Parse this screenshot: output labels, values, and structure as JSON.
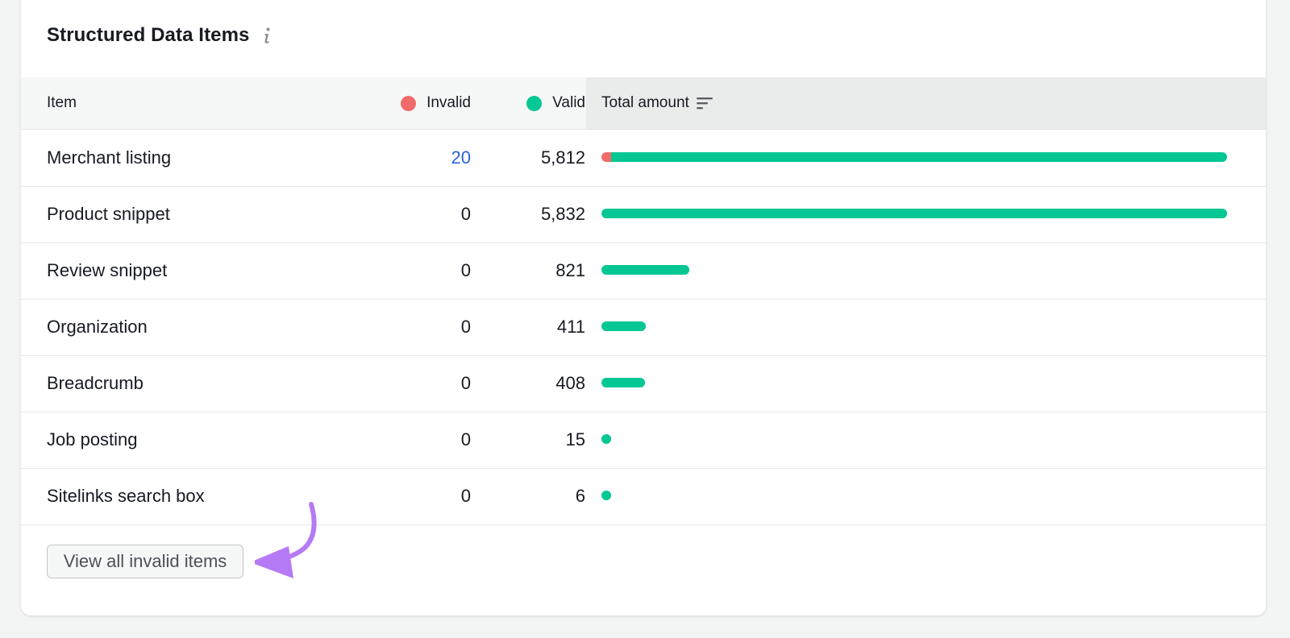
{
  "card": {
    "title": "Structured Data Items",
    "info_icon": "info-icon"
  },
  "columns": {
    "item": "Item",
    "invalid": "Invalid",
    "valid": "Valid",
    "total": "Total amount",
    "sort_icon": "sort-icon"
  },
  "colors": {
    "invalid": "#f26a6a",
    "valid": "#04c794",
    "link": "#2d62d6",
    "annotation_arrow": "#b57af5"
  },
  "rows": [
    {
      "name": "Merchant listing",
      "invalid": "20",
      "valid": "5,812",
      "invalid_num": 20,
      "valid_num": 5812
    },
    {
      "name": "Product snippet",
      "invalid": "0",
      "valid": "5,832",
      "invalid_num": 0,
      "valid_num": 5832
    },
    {
      "name": "Review snippet",
      "invalid": "0",
      "valid": "821",
      "invalid_num": 0,
      "valid_num": 821
    },
    {
      "name": "Organization",
      "invalid": "0",
      "valid": "411",
      "invalid_num": 0,
      "valid_num": 411
    },
    {
      "name": "Breadcrumb",
      "invalid": "0",
      "valid": "408",
      "invalid_num": 0,
      "valid_num": 408
    },
    {
      "name": "Job posting",
      "invalid": "0",
      "valid": "15",
      "invalid_num": 0,
      "valid_num": 15
    },
    {
      "name": "Sitelinks search box",
      "invalid": "0",
      "valid": "6",
      "invalid_num": 0,
      "valid_num": 6
    }
  ],
  "footer": {
    "view_invalid_button": "View all invalid items"
  }
}
